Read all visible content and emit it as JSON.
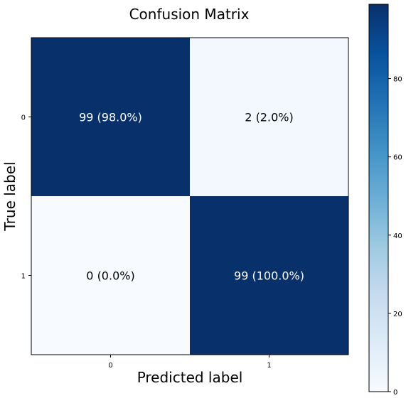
{
  "chart_data": {
    "type": "heatmap",
    "title": "Confusion Matrix",
    "xlabel": "Predicted label",
    "ylabel": "True label",
    "x_categories": [
      "0",
      "1"
    ],
    "y_categories": [
      "0",
      "1"
    ],
    "values": [
      [
        99,
        2
      ],
      [
        0,
        99
      ]
    ],
    "cell_labels": [
      [
        "99 (98.0%)",
        "2 (2.0%)"
      ],
      [
        "0 (0.0%)",
        "99 (100.0%)"
      ]
    ],
    "colormap": "Blues",
    "color_range": [
      0,
      99
    ],
    "colorbar": {
      "ticks": [
        0,
        20,
        40,
        60,
        80
      ],
      "tick_labels": [
        "0",
        "20",
        "40",
        "60",
        "80"
      ]
    }
  },
  "colors": {
    "cmap_low": "#f7fbff",
    "cmap_high": "#08306b",
    "text_on_dark": "#ffffff",
    "text_on_light": "#000000",
    "frame": "#000000"
  }
}
